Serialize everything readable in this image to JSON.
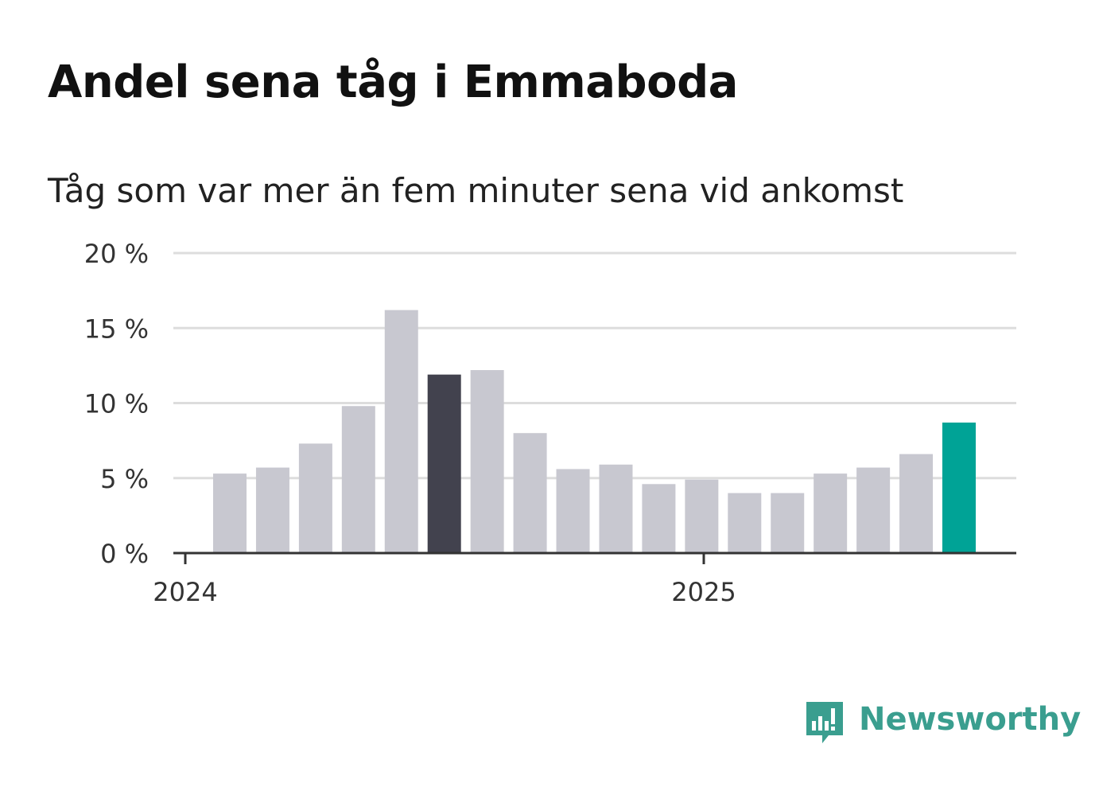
{
  "title": "Andel sena tåg i Emmaboda",
  "subtitle": "Tåg som var mer än fem minuter sena vid ankomst",
  "brand": {
    "name": "Newsworthy",
    "color": "#3a9e8f",
    "icon": "newsworthy-logo-icon"
  },
  "colors": {
    "bar_default": "#c8c8d0",
    "bar_highlight": "#42424e",
    "bar_latest": "#00a396",
    "grid": "#dddddd",
    "axis": "#333333"
  },
  "chart_data": {
    "type": "bar",
    "title": "Andel sena tåg i Emmaboda",
    "subtitle": "Tåg som var mer än fem minuter sena vid ankomst",
    "xlabel": "",
    "ylabel": "",
    "ylim": [
      0,
      20
    ],
    "yticks": [
      0,
      5,
      10,
      15,
      20
    ],
    "ytick_labels": [
      "0 %",
      "5 %",
      "10 %",
      "15 %",
      "20 %"
    ],
    "x_tick_labels": [
      "2024",
      "2025"
    ],
    "grid": true,
    "bar_count": 18,
    "values": [
      5.3,
      5.7,
      7.3,
      9.8,
      16.2,
      11.9,
      12.2,
      8.0,
      5.6,
      5.9,
      4.6,
      4.9,
      4.0,
      4.0,
      5.3,
      5.7,
      6.6,
      8.7
    ],
    "highlight_index": 5,
    "latest_index": 17
  }
}
